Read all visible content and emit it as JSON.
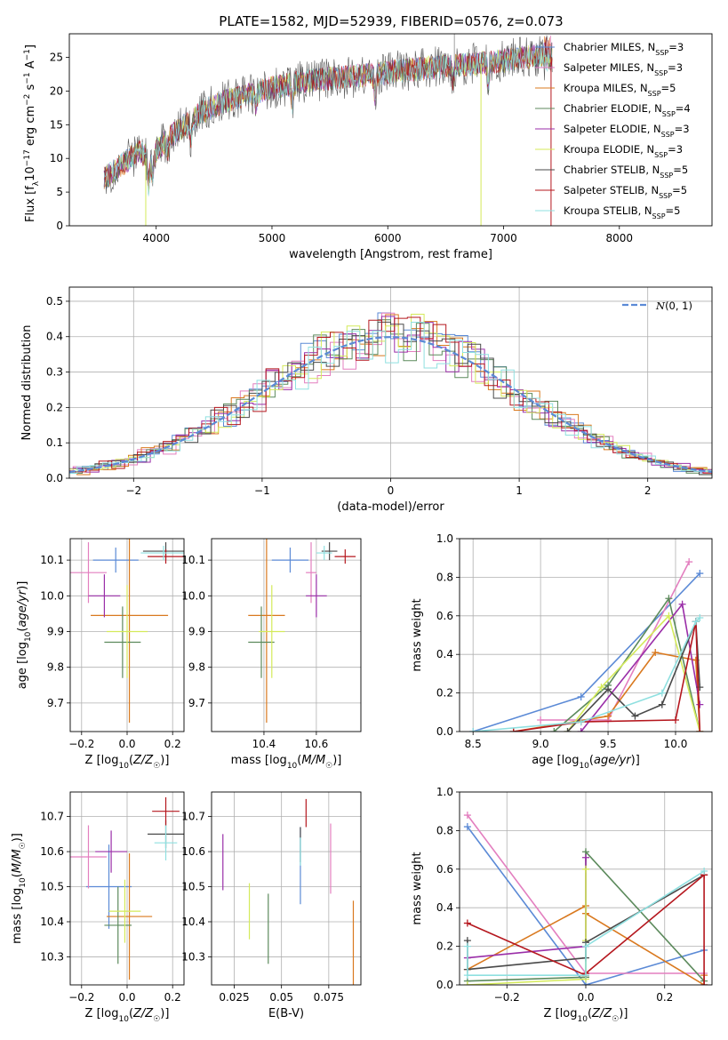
{
  "title": "PLATE=1582, MJD=52939, FIBERID=0576, z=0.073",
  "colors": {
    "Chabrier MILES": "#5b8ad6",
    "Salpeter MILES": "#e37fbf",
    "Kroupa MILES": "#d9791f",
    "Chabrier ELODIE": "#5c8a5c",
    "Salpeter ELODIE": "#9a2ea8",
    "Kroupa ELODIE": "#d4ea5a",
    "Chabrier STELIB": "#4a4a4a",
    "Salpeter STELIB": "#b5171e",
    "Kroupa STELIB": "#8fe0e0"
  },
  "legend_panel1": [
    {
      "name": "Chabrier MILES",
      "n": "3"
    },
    {
      "name": "Salpeter MILES",
      "n": "3"
    },
    {
      "name": "Kroupa MILES",
      "n": "5"
    },
    {
      "name": "Chabrier ELODIE",
      "n": "4"
    },
    {
      "name": "Salpeter ELODIE",
      "n": "3"
    },
    {
      "name": "Kroupa ELODIE",
      "n": "3"
    },
    {
      "name": "Chabrier STELIB",
      "n": "5"
    },
    {
      "name": "Salpeter STELIB",
      "n": "5"
    },
    {
      "name": "Kroupa STELIB",
      "n": "5"
    }
  ],
  "chart_data": [
    {
      "id": "spectrum",
      "type": "line",
      "xlabel": "wavelength [Angstrom, rest frame]",
      "ylabel": "Flux [f_λ 10^-17 erg cm^-2 s^-1 A^-1]",
      "xlim": [
        3250,
        8800
      ],
      "ylim": [
        0,
        28.5
      ],
      "xticks": [
        4000,
        5000,
        6000,
        7000,
        8000
      ],
      "yticks": [
        0,
        5,
        10,
        15,
        20,
        25
      ],
      "grid": false,
      "legend": "right",
      "continuum": {
        "x": [
          3550,
          3700,
          3850,
          3950,
          4100,
          4250,
          4400,
          4600,
          4800,
          5000,
          5300,
          5600,
          5900,
          6100,
          6400,
          6700,
          7000,
          7200,
          7400
        ],
        "y": [
          7,
          9,
          11,
          10,
          13,
          15,
          17,
          18.5,
          19.5,
          20.5,
          21.5,
          22,
          22.5,
          23,
          23.5,
          24,
          24.5,
          25,
          25.5
        ]
      },
      "range": [
        3550,
        7420
      ]
    },
    {
      "id": "residuals",
      "type": "step",
      "xlabel": "(data-model)/error",
      "ylabel": "Normed distribution",
      "xlim": [
        -2.5,
        2.5
      ],
      "ylim": [
        0,
        0.54
      ],
      "xticks": [
        -2,
        -1,
        0,
        1,
        2
      ],
      "yticks": [
        0.0,
        0.1,
        0.2,
        0.3,
        0.4,
        0.5
      ],
      "grid": true,
      "legend": "top-right",
      "gaussian_label": "N(0,1)"
    },
    {
      "id": "Z-age",
      "type": "errorbar",
      "xlabel": "Z [log10(Z/Z☉)]",
      "ylabel": "age [log10(age/yr)]",
      "xlim": [
        -0.25,
        0.25
      ],
      "ylim": [
        9.62,
        10.16
      ],
      "xticks": [
        -0.2,
        0.0,
        0.2
      ],
      "yticks": [
        9.7,
        9.8,
        9.9,
        10.0,
        10.1
      ],
      "grid": true,
      "points": [
        {
          "series": "Chabrier MILES",
          "x": -0.05,
          "xerr": 0.1,
          "y": 10.1,
          "yerr": 0.035
        },
        {
          "series": "Salpeter MILES",
          "x": -0.17,
          "xerr": 0.08,
          "y": 10.065,
          "yerr": 0.085
        },
        {
          "series": "Kroupa MILES",
          "x": 0.01,
          "xerr": 0.17,
          "y": 9.945,
          "yerr": 0.3
        },
        {
          "series": "Chabrier ELODIE",
          "x": -0.02,
          "xerr": 0.08,
          "y": 9.87,
          "yerr": 0.1
        },
        {
          "series": "Salpeter ELODIE",
          "x": -0.1,
          "xerr": 0.07,
          "y": 10.0,
          "yerr": 0.06
        },
        {
          "series": "Kroupa ELODIE",
          "x": 0.0,
          "xerr": 0.09,
          "y": 9.9,
          "yerr": 0.13
        },
        {
          "series": "Chabrier STELIB",
          "x": 0.17,
          "xerr": 0.1,
          "y": 10.125,
          "yerr": 0.025
        },
        {
          "series": "Salpeter STELIB",
          "x": 0.17,
          "xerr": 0.08,
          "y": 10.11,
          "yerr": 0.02
        },
        {
          "series": "Kroupa STELIB",
          "x": 0.16,
          "xerr": 0.1,
          "y": 10.12,
          "yerr": 0.02
        }
      ]
    },
    {
      "id": "mass-age",
      "type": "errorbar",
      "xlabel": "mass [log10(M/M☉)]",
      "ylabel": "",
      "xlim": [
        10.2,
        10.77
      ],
      "ylim": [
        9.62,
        10.16
      ],
      "xticks": [
        10.4,
        10.6
      ],
      "yticks": [
        9.7,
        9.8,
        9.9,
        10.0,
        10.1
      ],
      "grid": true,
      "points": [
        {
          "series": "Chabrier MILES",
          "x": 10.5,
          "xerr": 0.07,
          "y": 10.1,
          "yerr": 0.035
        },
        {
          "series": "Salpeter MILES",
          "x": 10.58,
          "xerr": 0.02,
          "y": 10.065,
          "yerr": 0.085
        },
        {
          "series": "Kroupa MILES",
          "x": 10.41,
          "xerr": 0.07,
          "y": 9.945,
          "yerr": 0.3
        },
        {
          "series": "Chabrier ELODIE",
          "x": 10.39,
          "xerr": 0.05,
          "y": 9.87,
          "yerr": 0.1
        },
        {
          "series": "Salpeter ELODIE",
          "x": 10.6,
          "xerr": 0.04,
          "y": 10.0,
          "yerr": 0.06
        },
        {
          "series": "Kroupa ELODIE",
          "x": 10.43,
          "xerr": 0.05,
          "y": 9.9,
          "yerr": 0.13
        },
        {
          "series": "Chabrier STELIB",
          "x": 10.65,
          "xerr": 0.03,
          "y": 10.125,
          "yerr": 0.025
        },
        {
          "series": "Salpeter STELIB",
          "x": 10.71,
          "xerr": 0.04,
          "y": 10.11,
          "yerr": 0.02
        },
        {
          "series": "Kroupa STELIB",
          "x": 10.63,
          "xerr": 0.03,
          "y": 10.12,
          "yerr": 0.02
        }
      ]
    },
    {
      "id": "age-weight",
      "type": "line",
      "xlabel": "age [log10(age/yr)]",
      "ylabel": "mass weight",
      "xlim": [
        8.4,
        10.27
      ],
      "ylim": [
        0,
        1
      ],
      "xticks": [
        8.5,
        9.0,
        9.5,
        10.0
      ],
      "yticks": [
        0.0,
        0.2,
        0.4,
        0.6,
        0.8,
        1.0
      ],
      "grid": true,
      "series": [
        {
          "name": "Chabrier MILES",
          "x": [
            8.5,
            9.3,
            10.18
          ],
          "y": [
            0.0,
            0.18,
            0.82
          ]
        },
        {
          "name": "Salpeter MILES",
          "x": [
            9.0,
            9.5,
            10.1
          ],
          "y": [
            0.06,
            0.06,
            0.88
          ]
        },
        {
          "name": "Kroupa MILES",
          "x": [
            8.8,
            9.5,
            9.85,
            10.15,
            10.18
          ],
          "y": [
            0.0,
            0.08,
            0.41,
            0.37,
            0.0
          ]
        },
        {
          "name": "Chabrier ELODIE",
          "x": [
            9.1,
            9.5,
            9.95,
            10.18
          ],
          "y": [
            0.0,
            0.24,
            0.69,
            0.0
          ]
        },
        {
          "name": "Salpeter ELODIE",
          "x": [
            9.3,
            10.05,
            10.18
          ],
          "y": [
            0.0,
            0.66,
            0.14
          ]
        },
        {
          "name": "Kroupa ELODIE",
          "x": [
            9.2,
            9.45,
            9.95,
            10.18
          ],
          "y": [
            0.0,
            0.23,
            0.6,
            0.0
          ]
        },
        {
          "name": "Chabrier STELIB",
          "x": [
            9.2,
            9.5,
            9.7,
            9.9,
            10.15,
            10.18
          ],
          "y": [
            0.0,
            0.22,
            0.08,
            0.14,
            0.57,
            0.23
          ]
        },
        {
          "name": "Salpeter STELIB",
          "x": [
            8.8,
            9.3,
            10.0,
            10.15,
            10.18
          ],
          "y": [
            0.0,
            0.05,
            0.06,
            0.57,
            0.0
          ]
        },
        {
          "name": "Kroupa STELIB",
          "x": [
            8.5,
            9.3,
            9.9,
            10.15,
            10.18
          ],
          "y": [
            0.0,
            0.05,
            0.2,
            0.57,
            0.59
          ]
        }
      ]
    },
    {
      "id": "Z-mass",
      "type": "errorbar",
      "xlabel": "Z [log10(Z/Z☉)]",
      "ylabel": "mass [log10(M/M☉)]",
      "xlim": [
        -0.25,
        0.25
      ],
      "ylim": [
        10.22,
        10.77
      ],
      "xticks": [
        -0.2,
        0.0,
        0.2
      ],
      "yticks": [
        10.3,
        10.4,
        10.5,
        10.6,
        10.7
      ],
      "grid": true,
      "points": [
        {
          "series": "Chabrier MILES",
          "x": -0.08,
          "xerr": 0.1,
          "y": 10.5,
          "yerr": 0.12
        },
        {
          "series": "Salpeter MILES",
          "x": -0.17,
          "xerr": 0.08,
          "y": 10.585,
          "yerr": 0.09
        },
        {
          "series": "Kroupa MILES",
          "x": 0.01,
          "xerr": 0.1,
          "y": 10.415,
          "yerr": 0.18
        },
        {
          "series": "Chabrier ELODIE",
          "x": -0.04,
          "xerr": 0.06,
          "y": 10.39,
          "yerr": 0.11
        },
        {
          "series": "Salpeter ELODIE",
          "x": -0.07,
          "xerr": 0.07,
          "y": 10.6,
          "yerr": 0.06
        },
        {
          "series": "Kroupa ELODIE",
          "x": -0.01,
          "xerr": 0.07,
          "y": 10.43,
          "yerr": 0.09
        },
        {
          "series": "Chabrier STELIB",
          "x": 0.17,
          "xerr": 0.08,
          "y": 10.65,
          "yerr": 0.04
        },
        {
          "series": "Salpeter STELIB",
          "x": 0.17,
          "xerr": 0.06,
          "y": 10.715,
          "yerr": 0.04
        },
        {
          "series": "Kroupa STELIB",
          "x": 0.17,
          "xerr": 0.05,
          "y": 10.625,
          "yerr": 0.05
        }
      ]
    },
    {
      "id": "ebv-mass",
      "type": "errorbar",
      "xlabel": "E(B-V)",
      "ylabel": "",
      "xlim": [
        0.013,
        0.092
      ],
      "ylim": [
        10.22,
        10.77
      ],
      "xticks": [
        0.025,
        0.05,
        0.075
      ],
      "yticks": [
        10.3,
        10.4,
        10.5,
        10.6,
        10.7
      ],
      "grid": true,
      "points": [
        {
          "series": "Chabrier MILES",
          "x": 0.06,
          "xerr": 0,
          "y": 10.56,
          "yerr": 0.11
        },
        {
          "series": "Salpeter MILES",
          "x": 0.076,
          "xerr": 0,
          "y": 10.58,
          "yerr": 0.1
        },
        {
          "series": "Kroupa MILES",
          "x": 0.088,
          "xerr": 0,
          "y": 10.34,
          "yerr": 0.12
        },
        {
          "series": "Chabrier ELODIE",
          "x": 0.043,
          "xerr": 0,
          "y": 10.38,
          "yerr": 0.1
        },
        {
          "series": "Salpeter ELODIE",
          "x": 0.019,
          "xerr": 0,
          "y": 10.57,
          "yerr": 0.08
        },
        {
          "series": "Kroupa ELODIE",
          "x": 0.033,
          "xerr": 0,
          "y": 10.43,
          "yerr": 0.08
        },
        {
          "series": "Chabrier STELIB",
          "x": 0.06,
          "xerr": 0,
          "y": 10.62,
          "yerr": 0.05
        },
        {
          "series": "Salpeter STELIB",
          "x": 0.063,
          "xerr": 0,
          "y": 10.71,
          "yerr": 0.04
        },
        {
          "series": "Kroupa STELIB",
          "x": 0.06,
          "xerr": 0,
          "y": 10.6,
          "yerr": 0.04
        }
      ]
    },
    {
      "id": "Z-weight",
      "type": "line",
      "xlabel": "Z [log10(Z/Z☉)]",
      "ylabel": "mass weight",
      "xlim": [
        -0.32,
        0.32
      ],
      "ylim": [
        0,
        1
      ],
      "xticks": [
        -0.2,
        0.0,
        0.2
      ],
      "yticks": [
        0.0,
        0.2,
        0.4,
        0.6,
        0.8,
        1.0
      ],
      "grid": true,
      "series": [
        {
          "name": "Chabrier MILES",
          "x": [
            -0.3,
            0.0,
            0.3
          ],
          "y": [
            0.82,
            0.0,
            0.18
          ]
        },
        {
          "name": "Salpeter MILES",
          "x": [
            -0.3,
            0.0,
            0.3
          ],
          "y": [
            0.88,
            0.06,
            0.06
          ]
        },
        {
          "name": "Kroupa MILES",
          "x": [
            -0.3,
            0.0,
            0.0,
            0.3,
            0.3
          ],
          "y": [
            0.08,
            0.41,
            0.37,
            0.0,
            0.05
          ]
        },
        {
          "name": "Chabrier ELODIE",
          "x": [
            -0.3,
            0.0,
            0.0,
            0.3
          ],
          "y": [
            0.02,
            0.04,
            0.69,
            0.02
          ]
        },
        {
          "name": "Salpeter ELODIE",
          "x": [
            -0.3,
            0.0,
            0.0
          ],
          "y": [
            0.14,
            0.2,
            0.66
          ]
        },
        {
          "name": "Kroupa ELODIE",
          "x": [
            -0.3,
            0.0,
            0.0,
            0.0
          ],
          "y": [
            0.0,
            0.03,
            0.6,
            0.23
          ]
        },
        {
          "name": "Chabrier STELIB",
          "x": [
            -0.3,
            -0.3,
            0.0,
            0.0,
            0.3
          ],
          "y": [
            0.23,
            0.08,
            0.14,
            0.22,
            0.57
          ]
        },
        {
          "name": "Salpeter STELIB",
          "x": [
            -0.3,
            0.0,
            0.0,
            0.3,
            0.3
          ],
          "y": [
            0.32,
            0.05,
            0.06,
            0.57,
            0.0
          ]
        },
        {
          "name": "Kroupa STELIB",
          "x": [
            -0.3,
            -0.3,
            0.0,
            0.0,
            0.3
          ],
          "y": [
            0.2,
            0.05,
            0.05,
            0.2,
            0.59
          ]
        }
      ]
    }
  ]
}
